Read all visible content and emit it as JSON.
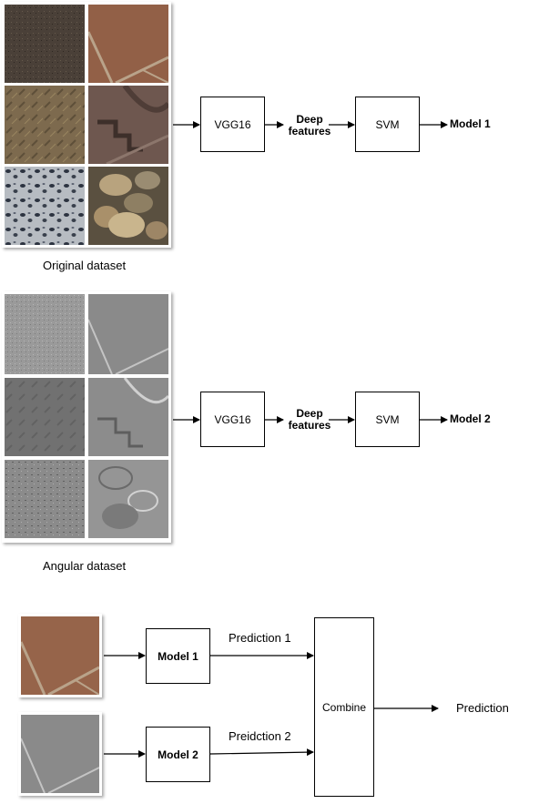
{
  "original": {
    "caption": "Original dataset",
    "vgg": "VGG16",
    "deep": "Deep features",
    "svm": "SVM",
    "model": "Model 1"
  },
  "angular": {
    "caption": "Angular dataset",
    "vgg": "VGG16",
    "deep": "Deep features",
    "svm": "SVM",
    "model": "Model 2"
  },
  "ensemble": {
    "model1": "Model 1",
    "model2": "Model 2",
    "pred1": "Prediction 1",
    "pred2": "Preidction 2",
    "combine": "Combine",
    "prediction": "Prediction"
  }
}
